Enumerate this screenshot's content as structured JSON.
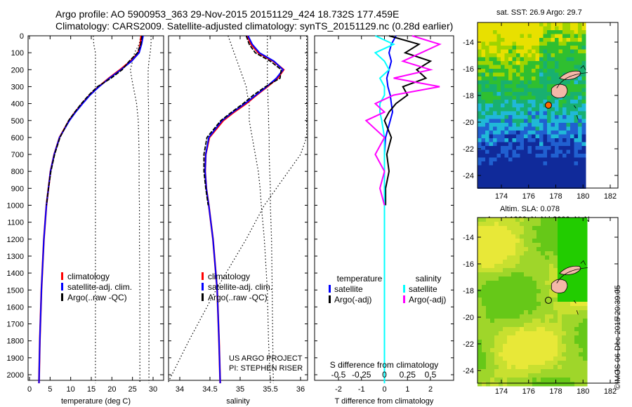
{
  "title_line1": "Argo profile: AO 5900953_363 29-Nov-2015 20151129_424 18.732S 177.459E",
  "title_line2": "Climatology: CARS2009. Satellite-adjusted climatology: synTS_20151129.nc (0.28d earlier)",
  "map1_title": "sat. SST: 26.9 Argo: 29.7",
  "map2_title1": "Altim. SLA: 0.078",
  "map2_title2": "Argo h1000: NaN h2000: NaN",
  "credit": "©IMOS 06-Dec-2015 20:39:05",
  "project1": "US ARGO PROJECT",
  "project2": "PI: STEPHEN RISER",
  "colors": {
    "clim": "#ff0000",
    "sat": "#0000ff",
    "argo": "#000000",
    "sal_sat": "#00ffff",
    "sal_argo": "#ff00ff",
    "island": "#f4b8a8",
    "marker1": "#ff6600"
  },
  "chart_data": [
    {
      "type": "line",
      "name": "temperature",
      "xlabel": "temperature (deg C)",
      "xlim": [
        -1,
        31
      ],
      "ylim": [
        2060,
        0
      ],
      "xticks": [
        0,
        5,
        10,
        15,
        20,
        25,
        30
      ],
      "yticks": [
        0,
        100,
        200,
        300,
        400,
        500,
        600,
        700,
        800,
        900,
        1000,
        1100,
        1200,
        1300,
        1400,
        1500,
        1600,
        1700,
        1800,
        1900,
        2000
      ],
      "legend": [
        "climatology",
        "satellite-adj. clim.",
        "Argo(..raw -QC)"
      ],
      "depth": [
        0,
        50,
        100,
        150,
        200,
        250,
        300,
        350,
        400,
        450,
        500,
        600,
        700,
        800,
        900,
        1000,
        1200,
        1500,
        1800,
        2050
      ],
      "series": [
        {
          "name": "climatology",
          "values": [
            27.1,
            26.9,
            26.4,
            24.5,
            22.0,
            19.3,
            16.8,
            14.6,
            12.8,
            11.1,
            9.6,
            7.3,
            6.0,
            5.1,
            4.6,
            4.1,
            3.5,
            2.9,
            2.5,
            2.3
          ]
        },
        {
          "name": "satellite-adj. clim.",
          "values": [
            27.6,
            27.2,
            26.6,
            24.8,
            22.2,
            19.4,
            16.9,
            14.7,
            12.9,
            11.2,
            9.7,
            7.3,
            6.0,
            5.1,
            4.6,
            4.1,
            3.5,
            2.9,
            2.5,
            2.3
          ]
        },
        {
          "name": "Argo(..raw -QC)",
          "values": [
            27.3,
            27.0,
            26.2,
            24.2,
            22.5,
            19.8,
            16.5,
            14.4,
            12.6,
            11.0,
            9.5,
            7.4,
            6.1,
            5.2,
            4.6,
            4.1,
            null,
            null,
            null,
            null
          ]
        }
      ],
      "dotted": [
        [
          15.5,
          15.6,
          16,
          16,
          16,
          16,
          16,
          16,
          16,
          16,
          16,
          16,
          16,
          16,
          16,
          16,
          16,
          16,
          16,
          16
        ],
        [
          27,
          26.6,
          25.5,
          25,
          24.5,
          24.8,
          25.2,
          25.6,
          26,
          26.2,
          26.4,
          26.5,
          26.6,
          26.6,
          26.6,
          26.7,
          26.7,
          26.8,
          26.8,
          26.8
        ],
        [
          29.5,
          29.5,
          29.3,
          29,
          28.8,
          28.8,
          28.8,
          28.8,
          28.9,
          28.9,
          28.9,
          28.9,
          29,
          29,
          29,
          29,
          29,
          29,
          29,
          29
        ]
      ]
    },
    {
      "type": "line",
      "name": "salinity",
      "xlabel": "salinity",
      "xlim": [
        33.8,
        36.1
      ],
      "ylim": [
        2060,
        0
      ],
      "xticks": [
        34,
        34.5,
        35,
        35.5,
        36
      ],
      "legend": [
        "climatology",
        "satellite-adj. clim.",
        "Argo(..raw -QC)"
      ],
      "depth": [
        0,
        50,
        100,
        150,
        200,
        250,
        300,
        350,
        400,
        450,
        500,
        600,
        700,
        800,
        900,
        1000,
        1200,
        1500,
        1800,
        2050
      ],
      "series": [
        {
          "name": "climatology",
          "values": [
            35.12,
            35.18,
            35.3,
            35.55,
            35.72,
            35.62,
            35.45,
            35.27,
            35.1,
            34.9,
            34.72,
            34.49,
            34.43,
            34.42,
            34.44,
            34.48,
            34.55,
            34.62,
            34.65,
            34.67
          ]
        },
        {
          "name": "satellite-adj. clim.",
          "values": [
            35.13,
            35.2,
            35.32,
            35.56,
            35.71,
            35.6,
            35.44,
            35.26,
            35.08,
            34.88,
            34.7,
            34.48,
            34.43,
            34.42,
            34.44,
            34.48,
            34.55,
            34.62,
            34.65,
            34.67
          ]
        },
        {
          "name": "Argo(..raw -QC)",
          "values": [
            35.1,
            35.15,
            35.25,
            35.5,
            35.68,
            35.66,
            35.42,
            35.22,
            35.05,
            34.86,
            34.68,
            34.45,
            34.4,
            34.4,
            34.43,
            34.47,
            null,
            null,
            null,
            null
          ]
        }
      ],
      "dotted": [
        [
          34.8,
          34.85,
          34.9,
          34.95,
          35.0,
          35.05,
          35.1,
          35.12,
          35.15,
          35.15,
          35.15,
          35.2,
          35.25,
          35.3,
          35.33,
          35.35,
          35.4,
          35.45,
          35.47,
          35.5
        ],
        [
          35.45,
          35.45,
          35.45,
          35.45,
          35.45,
          35.45,
          35.45,
          35.46,
          35.46,
          35.47,
          35.47,
          35.48,
          35.48,
          35.49,
          35.5,
          35.5,
          35.52,
          35.53,
          35.54,
          35.55
        ],
        [
          36.1,
          36.1,
          36.1,
          36.1,
          36.1,
          36.1,
          36.1,
          36.1,
          36.1,
          36.1,
          36.1,
          36.1,
          36.0,
          35.8,
          35.6,
          35.4,
          35.1,
          34.6,
          34.15,
          33.8
        ]
      ]
    },
    {
      "type": "line",
      "name": "difference",
      "xlabel": "T difference from climatology",
      "top_label": "S difference from climatology",
      "xlim": [
        -3,
        3
      ],
      "ylim": [
        2060,
        0
      ],
      "xticks": [
        -2,
        -1,
        0,
        1,
        2
      ],
      "sticks": [
        "-0.5",
        "-0.25",
        "0",
        "0.25",
        "0.5"
      ],
      "legend_titles": [
        "temperature",
        "salinity"
      ],
      "legend": [
        "satellite",
        "Argo(-adj)",
        "satellite",
        "Argo(-adj)"
      ],
      "depth": [
        0,
        50,
        100,
        150,
        200,
        250,
        300,
        350,
        400,
        450,
        500,
        600,
        700,
        800,
        900,
        1000,
        1200,
        1500,
        1800,
        2050
      ],
      "series": [
        {
          "name": "T satellite",
          "values": [
            0.5,
            0.3,
            0.2,
            0.3,
            0.2,
            0.1,
            0.15,
            0.25,
            0.3,
            0.35,
            0.25,
            0.05,
            0,
            0,
            0,
            0,
            0,
            0,
            0,
            0
          ]
        },
        {
          "name": "T Argo(-adj)",
          "values": [
            0.2,
            1.5,
            0.9,
            2.0,
            1.4,
            1.8,
            0.8,
            1.0,
            0.5,
            0.2,
            0,
            0.3,
            0.1,
            0.2,
            0.05,
            0.05,
            null,
            null,
            null,
            null
          ]
        },
        {
          "name": "S satellite",
          "values": [
            -0.1,
            0.1,
            -0.1,
            0,
            0.05,
            -0.05,
            0,
            0,
            -0.05,
            -0.05,
            -0.03,
            0,
            0,
            0,
            0,
            0,
            0,
            0,
            0,
            0
          ]
        },
        {
          "name": "S Argo(-adj)",
          "values": [
            0.3,
            0.6,
            0.4,
            0.2,
            0.5,
            0.1,
            0.6,
            0.1,
            -0.1,
            0,
            -0.2,
            0,
            -0.1,
            0,
            -0.05,
            0,
            null,
            null,
            null,
            null
          ]
        }
      ]
    }
  ],
  "maps": {
    "xticks": [
      174,
      176,
      178,
      180,
      182
    ],
    "yticks": [
      -14,
      -16,
      -18,
      -20,
      -22,
      -24
    ],
    "lon_range": [
      172.8,
      183.5
    ],
    "lat_range": [
      -12.6,
      -24.9
    ],
    "argo_lon": 177.459,
    "argo_lat": -18.732
  }
}
